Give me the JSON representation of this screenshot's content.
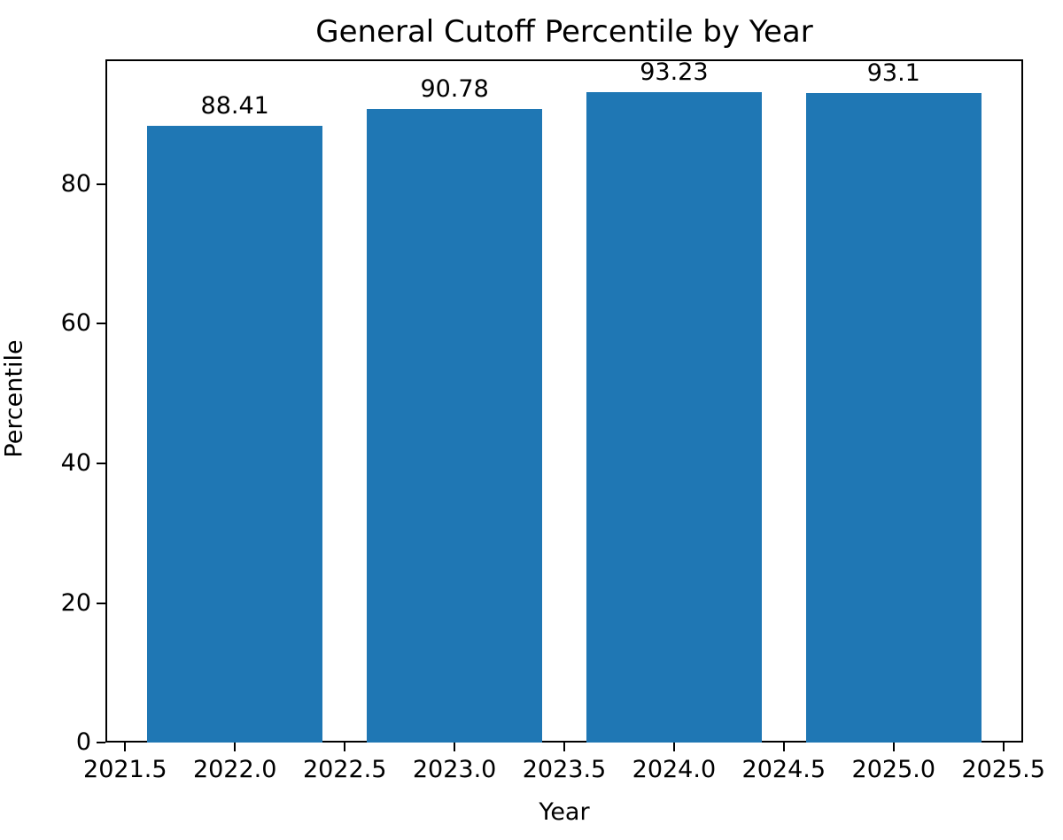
{
  "chart_data": {
    "type": "bar",
    "title": "General Cutoff Percentile by Year",
    "xlabel": "Year",
    "ylabel": "Percentile",
    "categories": [
      2022,
      2023,
      2024,
      2025
    ],
    "values": [
      88.41,
      90.78,
      93.23,
      93.1
    ],
    "bar_labels": [
      "88.41",
      "90.78",
      "93.23",
      "93.1"
    ],
    "bar_color": "#1f77b4",
    "bar_width": 0.8,
    "xlim": [
      2021.41,
      2025.59
    ],
    "ylim": [
      0,
      97.89
    ],
    "x_ticks": [
      2021.5,
      2022.0,
      2022.5,
      2023.0,
      2023.5,
      2024.0,
      2024.5,
      2025.0,
      2025.5
    ],
    "x_tick_labels": [
      "2021.5",
      "2022.0",
      "2022.5",
      "2023.0",
      "2023.5",
      "2024.0",
      "2024.5",
      "2025.0",
      "2025.5"
    ],
    "y_ticks": [
      0,
      20,
      40,
      60,
      80
    ],
    "y_tick_labels": [
      "0",
      "20",
      "40",
      "60",
      "80"
    ],
    "grid": false,
    "legend": null,
    "axis_color": "#000000",
    "background_color": "#ffffff"
  }
}
